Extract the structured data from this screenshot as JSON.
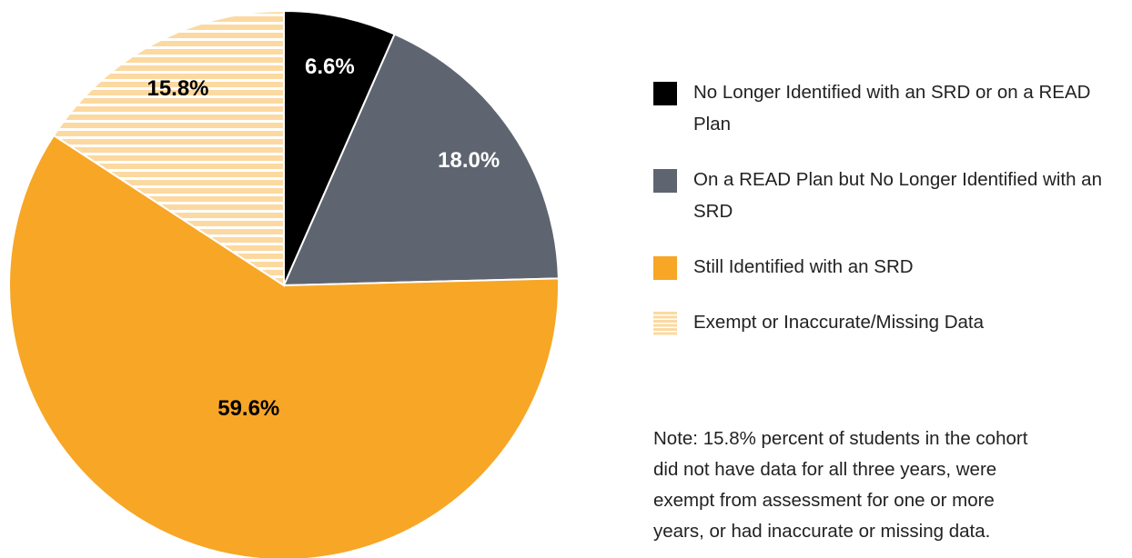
{
  "chart_data": {
    "type": "pie",
    "categories": [
      "No Longer Identified with an SRD or on a READ Plan",
      "On a READ Plan but No Longer Identified with an SRD",
      "Still Identified with an SRD",
      "Exempt or Inaccurate/Missing Data"
    ],
    "values": [
      6.6,
      18.0,
      59.6,
      15.8
    ],
    "value_labels": [
      "6.6%",
      "18.0%",
      "59.6%",
      "15.8%"
    ],
    "colors": [
      "#000000",
      "#5e6570",
      "#f7a626",
      "#fcd9a0"
    ],
    "patterns": [
      null,
      null,
      null,
      "horizontal-stripes"
    ],
    "note": [
      "Note: 15.8% percent of students in the cohort",
      "did not have data for all three years, were",
      "exempt from assessment for one or more",
      "years, or had inaccurate or missing data."
    ]
  }
}
